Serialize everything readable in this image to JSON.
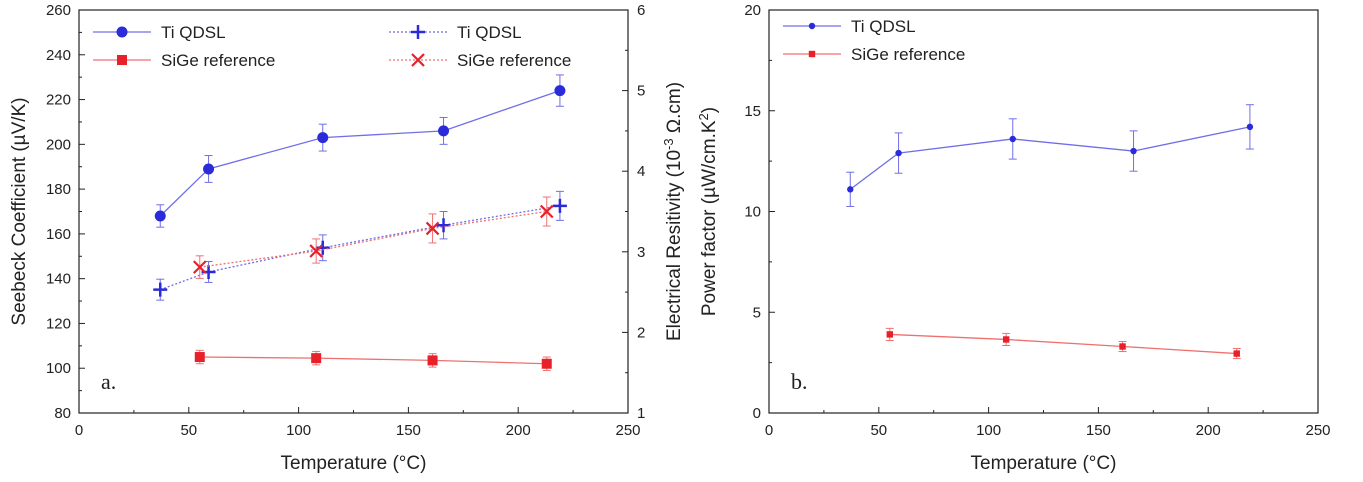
{
  "colors": {
    "ti": "#2b2bd9",
    "sige": "#e8202a",
    "sige_line": "#f07070",
    "ti_line": "#6f6fe8",
    "axis": "#222222"
  },
  "chart_data": [
    {
      "type": "line",
      "panel_label": "a.",
      "xlabel": "Temperature (°C)",
      "ylabel": "Seebeck Coefficient (µV/K)",
      "y2label": "Electrical Resitivity (10",
      "y2label_exp": "-3",
      "y2label_unit": " Ω.cm)",
      "xlim": [
        0,
        250
      ],
      "ylim": [
        80,
        260
      ],
      "y2lim": [
        1,
        6
      ],
      "xticks": [
        0,
        50,
        100,
        150,
        200,
        250
      ],
      "yticks": [
        80,
        100,
        120,
        140,
        160,
        180,
        200,
        220,
        240,
        260
      ],
      "y2ticks": [
        1,
        2,
        3,
        4,
        5,
        6
      ],
      "legend_position": "top",
      "series": [
        {
          "name": "Ti QDSL",
          "axis": "left",
          "marker": "circle",
          "dash": false,
          "color_key": "ti",
          "x": [
            37,
            59,
            111,
            166,
            219
          ],
          "y": [
            168,
            189,
            203,
            206,
            224
          ],
          "err": [
            5,
            6,
            6,
            6,
            7
          ]
        },
        {
          "name": "SiGe reference",
          "axis": "left",
          "marker": "square",
          "dash": false,
          "color_key": "sige",
          "x": [
            55,
            108,
            161,
            213
          ],
          "y": [
            105,
            104.5,
            103.5,
            102
          ],
          "err": [
            3,
            3,
            3,
            3
          ]
        },
        {
          "name": "Ti QDSL",
          "axis": "right",
          "marker": "plus",
          "dash": true,
          "color_key": "ti",
          "x": [
            37,
            59,
            111,
            166,
            219
          ],
          "y": [
            2.53,
            2.75,
            3.05,
            3.33,
            3.57
          ],
          "err": [
            0.13,
            0.13,
            0.16,
            0.17,
            0.18
          ]
        },
        {
          "name": "SiGe reference",
          "axis": "right",
          "marker": "x",
          "dash": true,
          "color_key": "sige",
          "x": [
            55,
            108,
            161,
            213
          ],
          "y": [
            2.81,
            3.01,
            3.29,
            3.5
          ],
          "err": [
            0.14,
            0.15,
            0.18,
            0.18
          ]
        }
      ]
    },
    {
      "type": "line",
      "panel_label": "b.",
      "xlabel": "Temperature (°C)",
      "ylabel": "Power factor (µW/cm.K",
      "ylabel_exp": "2",
      "ylabel_unit": ")",
      "xlim": [
        0,
        250
      ],
      "ylim": [
        0,
        20
      ],
      "xticks": [
        0,
        50,
        100,
        150,
        200,
        250
      ],
      "yticks": [
        0,
        5,
        10,
        15,
        20
      ],
      "legend_position": "top-left",
      "series": [
        {
          "name": "Ti QDSL",
          "marker": "circle-small",
          "dash": false,
          "color_key": "ti",
          "x": [
            37,
            59,
            111,
            166,
            219
          ],
          "y": [
            11.1,
            12.9,
            13.6,
            13.0,
            14.2
          ],
          "err": [
            0.85,
            1.0,
            1.0,
            1.0,
            1.1
          ]
        },
        {
          "name": "SiGe reference",
          "marker": "square-small",
          "dash": false,
          "color_key": "sige",
          "x": [
            55,
            108,
            161,
            213
          ],
          "y": [
            3.9,
            3.65,
            3.3,
            2.95
          ],
          "err": [
            0.3,
            0.3,
            0.25,
            0.25
          ]
        }
      ]
    }
  ]
}
